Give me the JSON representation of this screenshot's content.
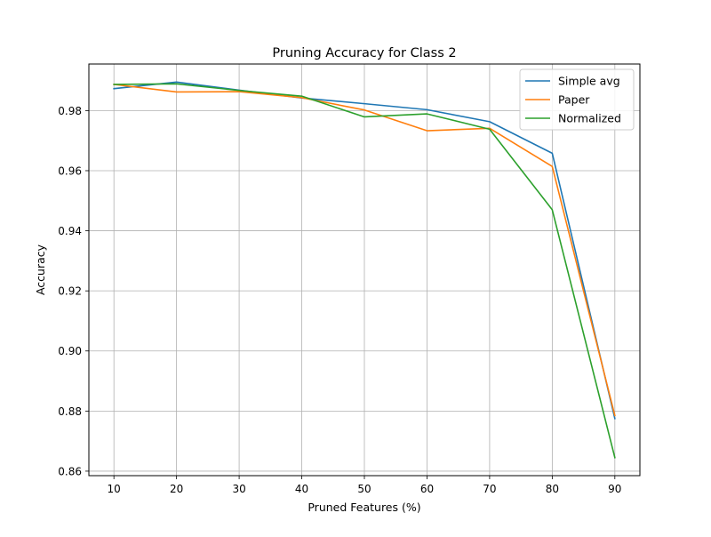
{
  "chart_data": {
    "type": "line",
    "title": "Pruning Accuracy for Class 2",
    "xlabel": "Pruned Features (%)",
    "ylabel": "Accuracy",
    "x": [
      10,
      20,
      30,
      40,
      50,
      60,
      70,
      80,
      90
    ],
    "xticks": [
      10,
      20,
      30,
      40,
      50,
      60,
      70,
      80,
      90
    ],
    "yticks": [
      0.86,
      0.88,
      0.9,
      0.92,
      0.94,
      0.96,
      0.98
    ],
    "ytick_labels": [
      "0.86",
      "0.88",
      "0.90",
      "0.92",
      "0.94",
      "0.96",
      "0.98"
    ],
    "xlim": [
      6,
      94
    ],
    "ylim": [
      0.8585,
      0.9955
    ],
    "grid": true,
    "legend_position": "top-right",
    "series": [
      {
        "name": "Simple avg",
        "color": "#1f77b4",
        "values": [
          0.9873,
          0.9895,
          0.9868,
          0.9842,
          0.9823,
          0.9803,
          0.9763,
          0.9658,
          0.8775
        ]
      },
      {
        "name": "Paper",
        "color": "#ff7f0e",
        "values": [
          0.9887,
          0.9862,
          0.9863,
          0.9843,
          0.9802,
          0.9733,
          0.9741,
          0.9614,
          0.8785
        ]
      },
      {
        "name": "Normalized",
        "color": "#2ca02c",
        "values": [
          0.9887,
          0.9889,
          0.9867,
          0.9848,
          0.9779,
          0.9789,
          0.9738,
          0.947,
          0.8645
        ]
      }
    ]
  }
}
